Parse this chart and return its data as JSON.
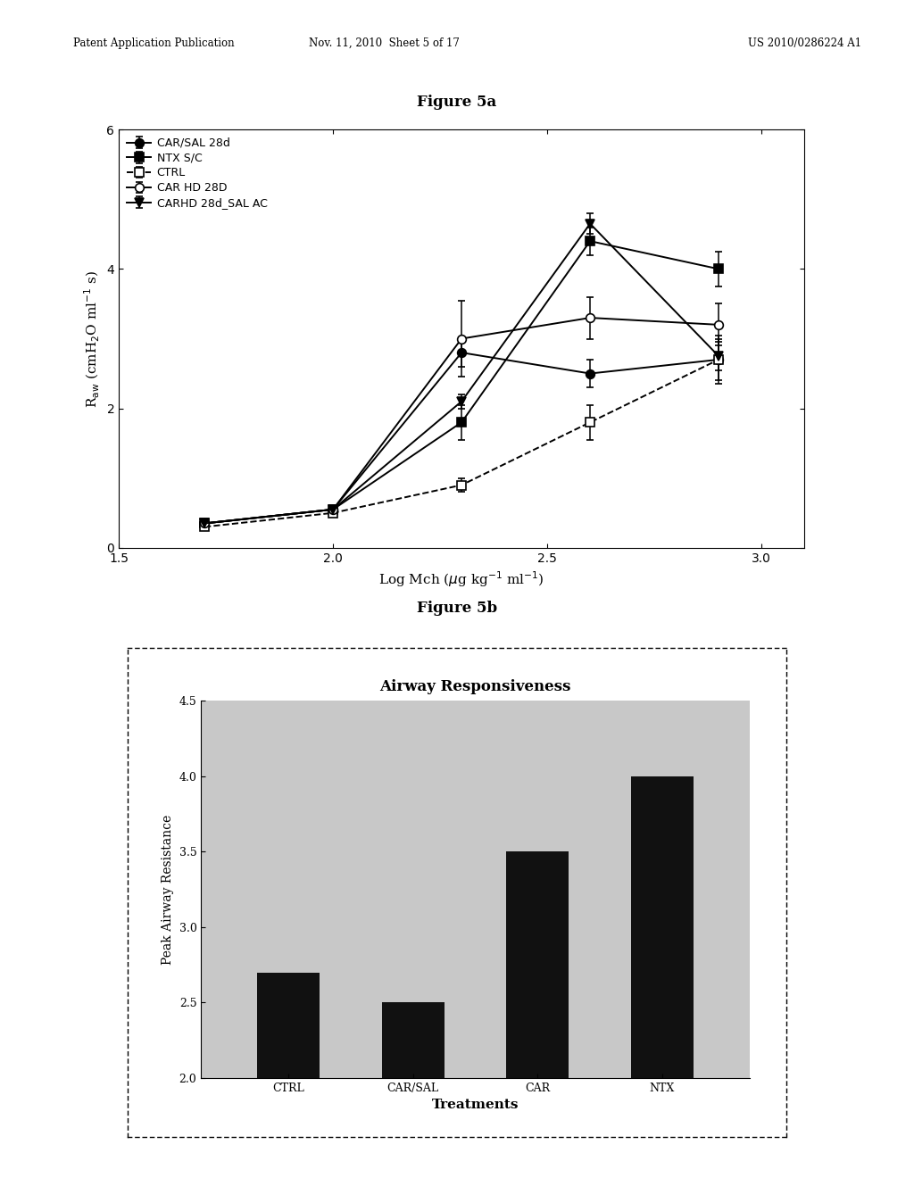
{
  "fig5a": {
    "title": "Figure 5a",
    "xlabel": "Log Mch (μg kg⁻¹ ml⁻¹)",
    "ylabel": "R_aw (cmH₂O ml⁻¹ s)",
    "xlim": [
      1.5,
      3.1
    ],
    "ylim": [
      0,
      6
    ],
    "xticks": [
      1.5,
      2.0,
      2.5,
      3.0
    ],
    "yticks": [
      0,
      2,
      4,
      6
    ],
    "series": {
      "CAR/SAL 28d": {
        "x": [
          1.7,
          2.0,
          2.3,
          2.6,
          2.9
        ],
        "y": [
          0.35,
          0.55,
          2.8,
          2.5,
          2.7
        ],
        "yerr": [
          0.05,
          0.05,
          0.2,
          0.2,
          0.35
        ],
        "marker": "o",
        "fillstyle": "full",
        "color": "black",
        "linestyle": "-"
      },
      "NTX S/C": {
        "x": [
          1.7,
          2.0,
          2.3,
          2.6,
          2.9
        ],
        "y": [
          0.35,
          0.55,
          1.8,
          4.4,
          4.0
        ],
        "yerr": [
          0.05,
          0.05,
          0.25,
          0.2,
          0.25
        ],
        "marker": "s",
        "fillstyle": "full",
        "color": "black",
        "linestyle": "-"
      },
      "CTRL": {
        "x": [
          1.7,
          2.0,
          2.3,
          2.6,
          2.9
        ],
        "y": [
          0.3,
          0.5,
          0.9,
          1.8,
          2.7
        ],
        "yerr": [
          0.05,
          0.05,
          0.1,
          0.25,
          0.3
        ],
        "marker": "s",
        "fillstyle": "none",
        "color": "black",
        "linestyle": "--"
      },
      "CAR HD 28D": {
        "x": [
          1.7,
          2.0,
          2.3,
          2.6,
          2.9
        ],
        "y": [
          0.35,
          0.55,
          3.0,
          3.3,
          3.2
        ],
        "yerr": [
          0.05,
          0.05,
          0.55,
          0.3,
          0.3
        ],
        "marker": "o",
        "fillstyle": "none",
        "color": "black",
        "linestyle": "-"
      },
      "CARHD 28d_SAL AC": {
        "x": [
          1.7,
          2.0,
          2.3,
          2.6,
          2.9
        ],
        "y": [
          0.35,
          0.55,
          2.1,
          4.65,
          2.75
        ],
        "yerr": [
          0.05,
          0.05,
          0.1,
          0.15,
          0.2
        ],
        "marker": "v",
        "fillstyle": "full",
        "color": "black",
        "linestyle": "-"
      }
    }
  },
  "fig5b": {
    "title": "Figure 5b",
    "inner_title": "Airway Responsiveness",
    "xlabel": "Treatments",
    "ylabel": "Peak Airway Resistance",
    "categories": [
      "CTRL",
      "CAR/SAL",
      "CAR",
      "NTX"
    ],
    "values": [
      2.7,
      2.5,
      3.5,
      4.0
    ],
    "ylim": [
      2.0,
      4.5
    ],
    "yticks": [
      2.0,
      2.5,
      3.0,
      3.5,
      4.0,
      4.5
    ],
    "bar_color": "#111111",
    "bg_color": "#c8c8c8"
  },
  "header_left": "Patent Application Publication",
  "header_mid": "Nov. 11, 2010  Sheet 5 of 17",
  "header_right": "US 2010/0286224 A1",
  "background_color": "#ffffff",
  "text_color": "#000000"
}
